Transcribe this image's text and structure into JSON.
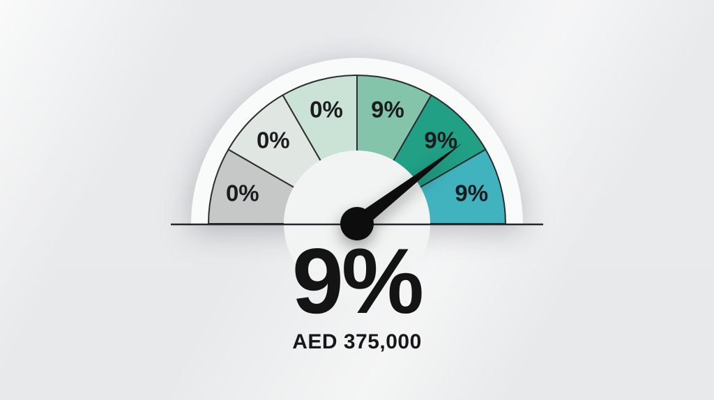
{
  "chart_data": {
    "type": "gauge",
    "title": "",
    "arc_span_deg": 180,
    "segments": [
      {
        "label": "0%",
        "value": 0,
        "color": "#c6c8c7"
      },
      {
        "label": "0%",
        "value": 0,
        "color": "#e0e7e3"
      },
      {
        "label": "0%",
        "value": 0,
        "color": "#cbe3d7"
      },
      {
        "label": "9%",
        "value": 9,
        "color": "#84c4aa"
      },
      {
        "label": "9%",
        "value": 9,
        "color": "#21a085"
      },
      {
        "label": "9%",
        "value": 9,
        "color": "#41b3bf"
      }
    ],
    "needle_angle_deg": 37.5,
    "needle_length": 190,
    "needle_points_to_label": "9%",
    "center_text": "9%",
    "sub_text": "AED 375,000",
    "colors": {
      "ring": "#f9fafa",
      "inner": "#f2f4f3",
      "stroke": "#2b2e2d",
      "label": "#1c1c1e",
      "needle": "#0d0d0d",
      "baseline": "#26262a"
    }
  }
}
